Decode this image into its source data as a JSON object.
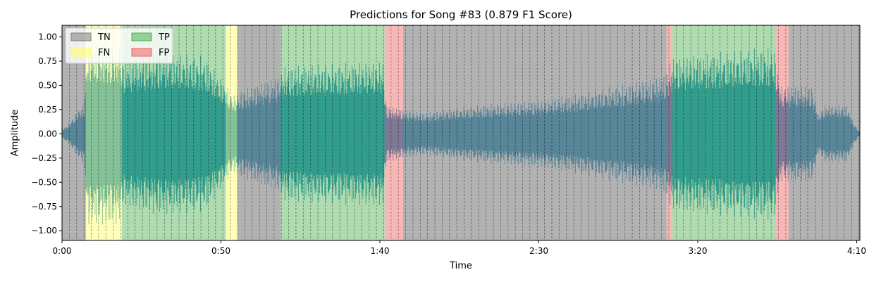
{
  "chart_data": {
    "type": "area",
    "title": "Predictions for Song #83 (0.879 F1 Score)",
    "xlabel": "Time",
    "ylabel": "Amplitude",
    "xlim": [
      0,
      251
    ],
    "ylim": [
      -1.1,
      1.12
    ],
    "xticks": [
      {
        "value": 0,
        "label": "0:00"
      },
      {
        "value": 50,
        "label": "0:50"
      },
      {
        "value": 100,
        "label": "1:40"
      },
      {
        "value": 150,
        "label": "2:30"
      },
      {
        "value": 200,
        "label": "3:20"
      },
      {
        "value": 250,
        "label": "4:10"
      }
    ],
    "yticks": [
      {
        "value": 1.0,
        "label": "1.00"
      },
      {
        "value": 0.75,
        "label": "0.75"
      },
      {
        "value": 0.5,
        "label": "0.50"
      },
      {
        "value": 0.25,
        "label": "0.25"
      },
      {
        "value": 0.0,
        "label": "0.00"
      },
      {
        "value": -0.25,
        "label": "−0.25"
      },
      {
        "value": -0.5,
        "label": "−0.50"
      },
      {
        "value": -0.75,
        "label": "−0.75"
      },
      {
        "value": -1.0,
        "label": "−1.00"
      }
    ],
    "legend": {
      "placement": "top-left",
      "entries": [
        {
          "label": "TN",
          "color": "#7f7f7f"
        },
        {
          "label": "FN",
          "color": "#ffff66"
        },
        {
          "label": "TP",
          "color": "#4caf50"
        },
        {
          "label": "FP",
          "color": "#f06060"
        }
      ]
    },
    "regions": [
      {
        "start": 0,
        "end": 7.5,
        "class": "TN"
      },
      {
        "start": 7.5,
        "end": 18.8,
        "class": "FN"
      },
      {
        "start": 18.8,
        "end": 51.5,
        "class": "TP"
      },
      {
        "start": 51.5,
        "end": 55.2,
        "class": "FN"
      },
      {
        "start": 55.2,
        "end": 68.8,
        "class": "TN"
      },
      {
        "start": 68.8,
        "end": 101.5,
        "class": "TP"
      },
      {
        "start": 101.5,
        "end": 107.3,
        "class": "FP"
      },
      {
        "start": 107.3,
        "end": 190.2,
        "class": "TN"
      },
      {
        "start": 190.2,
        "end": 192.0,
        "class": "FP"
      },
      {
        "start": 192.0,
        "end": 224.6,
        "class": "TP"
      },
      {
        "start": 224.6,
        "end": 228.6,
        "class": "FP"
      },
      {
        "start": 228.6,
        "end": 251,
        "class": "TN"
      }
    ],
    "frame_interval": 2.3,
    "waveform": {
      "color": "#1f8fbf",
      "envelope": [
        {
          "t": 0,
          "amp": 0.05
        },
        {
          "t": 2,
          "amp": 0.1
        },
        {
          "t": 5,
          "amp": 0.25
        },
        {
          "t": 7,
          "amp": 0.32
        },
        {
          "t": 8,
          "amp": 0.95
        },
        {
          "t": 18,
          "amp": 0.95
        },
        {
          "t": 19,
          "amp": 0.75
        },
        {
          "t": 30,
          "amp": 0.85
        },
        {
          "t": 45,
          "amp": 0.8
        },
        {
          "t": 54,
          "amp": 0.4
        },
        {
          "t": 56,
          "amp": 0.45
        },
        {
          "t": 68,
          "amp": 0.6
        },
        {
          "t": 70,
          "amp": 0.7
        },
        {
          "t": 101,
          "amp": 0.75
        },
        {
          "t": 102,
          "amp": 0.3
        },
        {
          "t": 108,
          "amp": 0.25
        },
        {
          "t": 114,
          "amp": 0.22
        },
        {
          "t": 120,
          "amp": 0.25
        },
        {
          "t": 132,
          "amp": 0.3
        },
        {
          "t": 150,
          "amp": 0.35
        },
        {
          "t": 160,
          "amp": 0.4
        },
        {
          "t": 175,
          "amp": 0.5
        },
        {
          "t": 189,
          "amp": 0.6
        },
        {
          "t": 192,
          "amp": 0.8
        },
        {
          "t": 224,
          "amp": 0.9
        },
        {
          "t": 226,
          "amp": 0.5
        },
        {
          "t": 236,
          "amp": 0.5
        },
        {
          "t": 238,
          "amp": 0.2
        },
        {
          "t": 240,
          "amp": 0.3
        },
        {
          "t": 247,
          "amp": 0.3
        },
        {
          "t": 249,
          "amp": 0.12
        },
        {
          "t": 251,
          "amp": 0.02
        }
      ]
    }
  }
}
